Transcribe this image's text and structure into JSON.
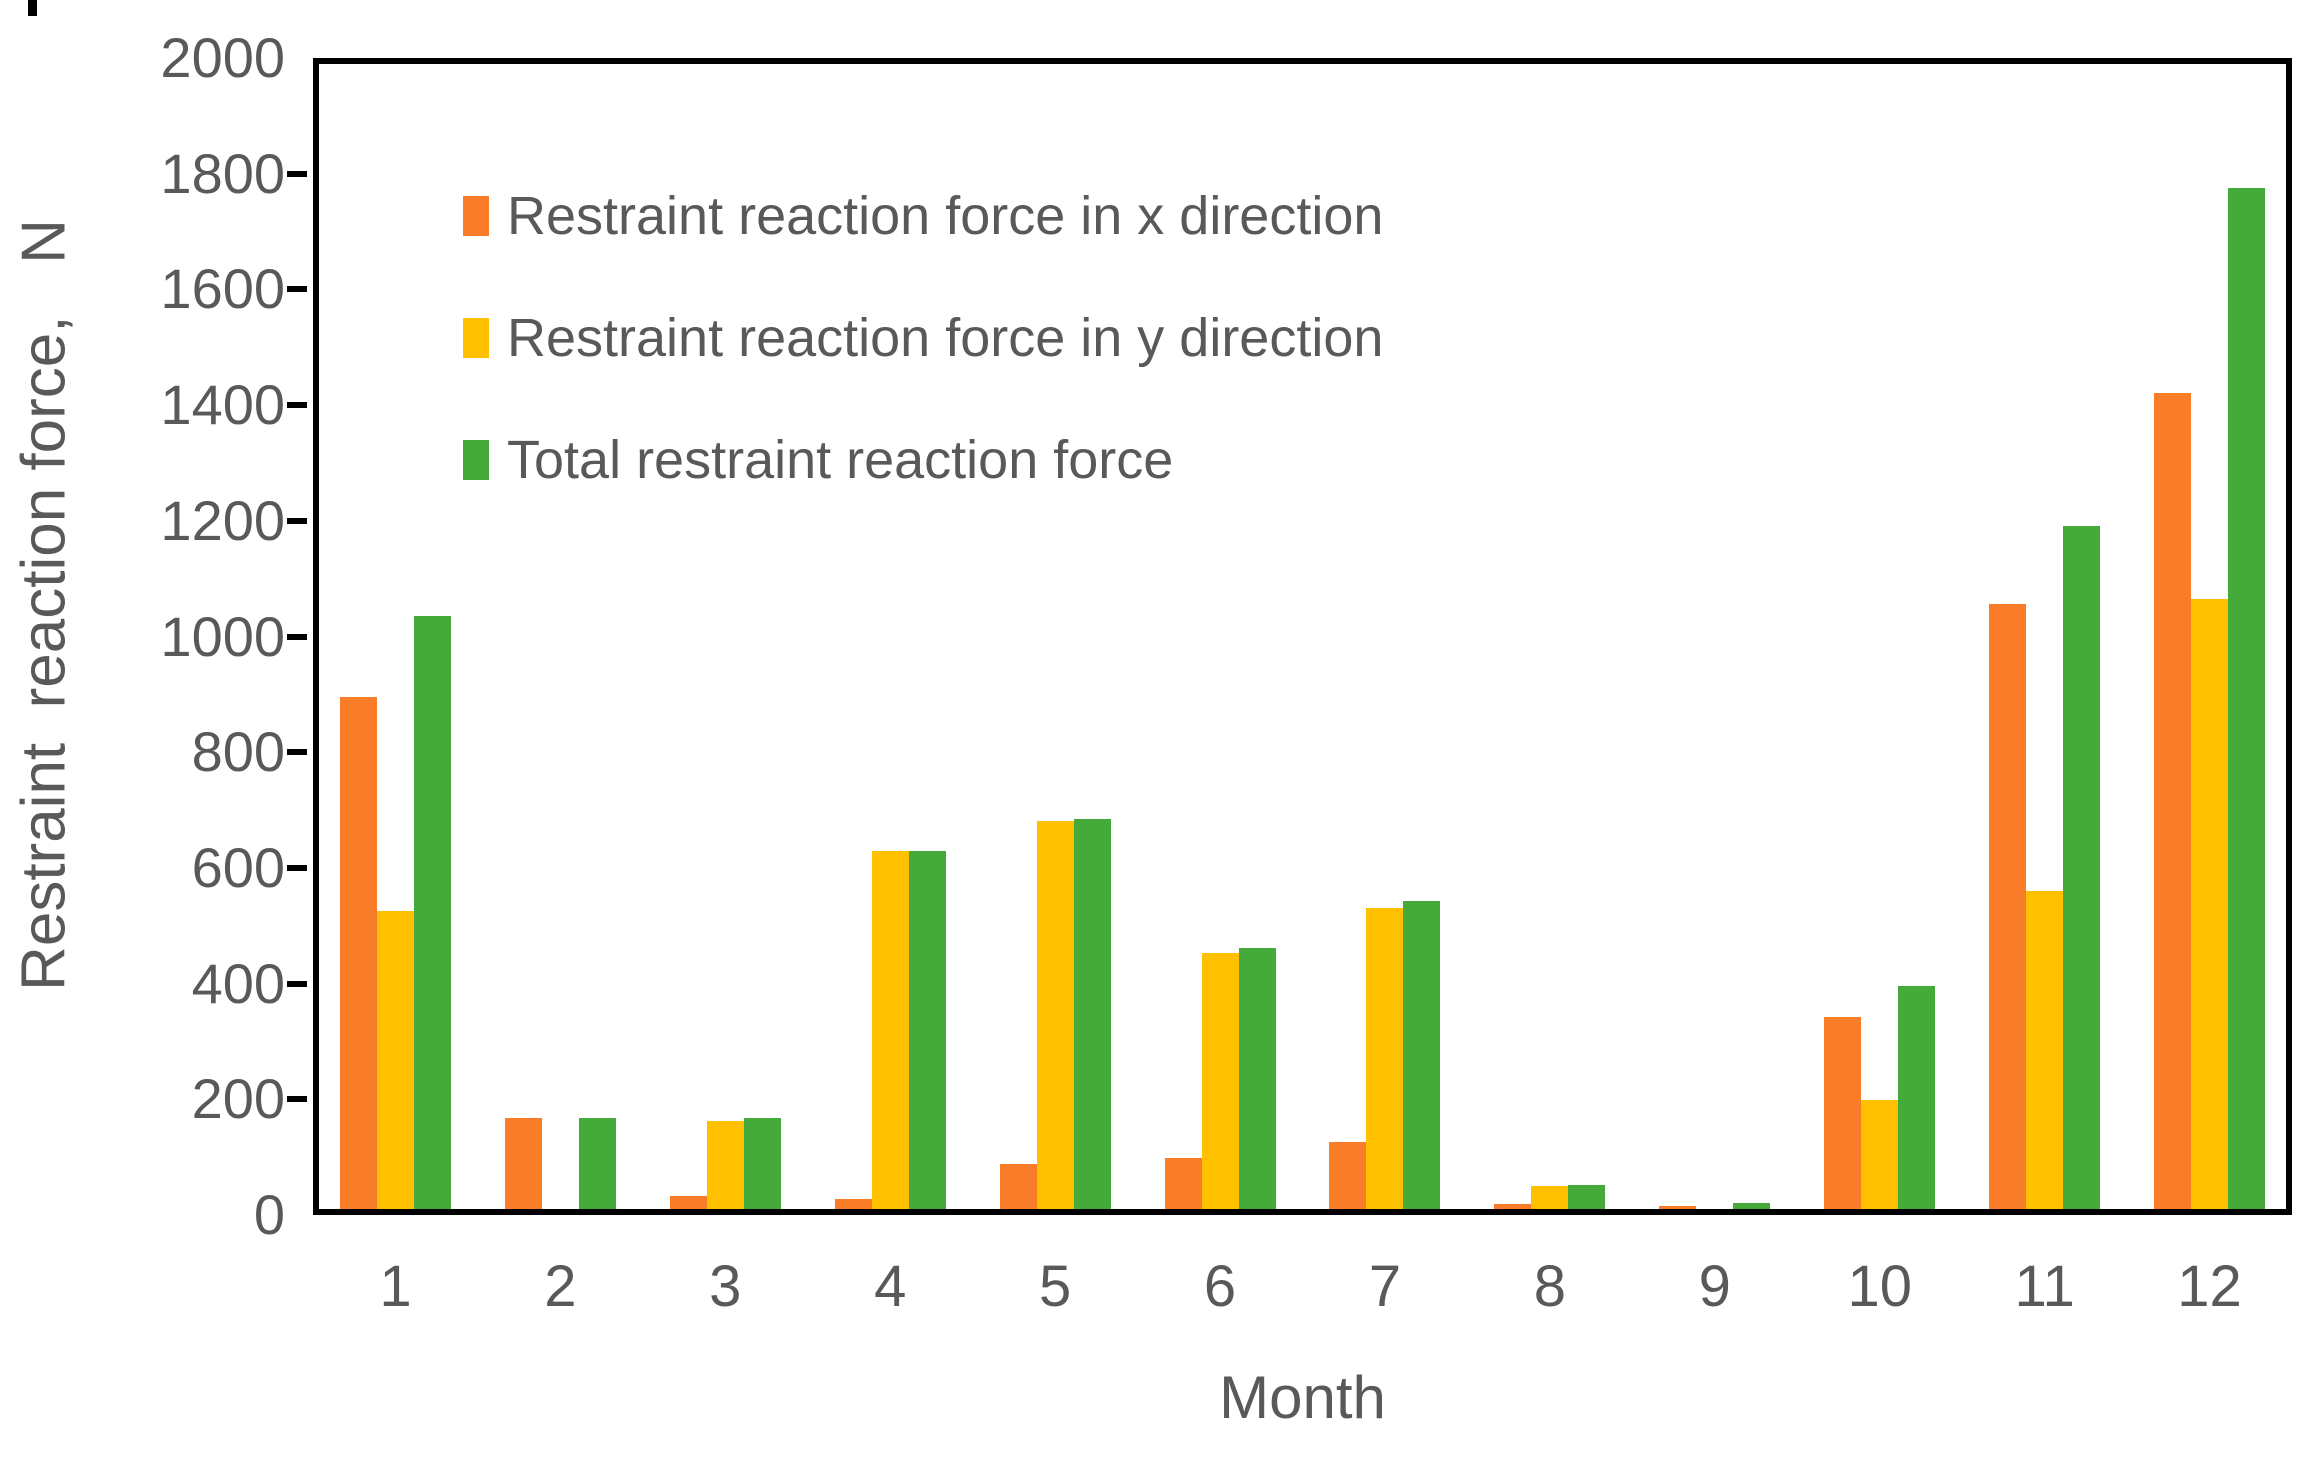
{
  "chart_data": {
    "type": "bar",
    "title": "",
    "xlabel": "Month",
    "ylabel": "Restraint  reaction force,   N",
    "categories": [
      "1",
      "2",
      "3",
      "4",
      "5",
      "6",
      "7",
      "8",
      "9",
      "10",
      "11",
      "12"
    ],
    "series": [
      {
        "name": "Restraint reaction force in x direction",
        "color": "#F97D28",
        "values": [
          885,
          158,
          22,
          18,
          78,
          88,
          115,
          8,
          6,
          332,
          1045,
          1410
        ]
      },
      {
        "name": "Restraint reaction force in y direction",
        "color": "#FFC000",
        "values": [
          515,
          0,
          152,
          618,
          670,
          442,
          520,
          40,
          0,
          188,
          550,
          1055
        ]
      },
      {
        "name": "Total restraint reaction force",
        "color": "#44AB3B",
        "values": [
          1025,
          158,
          157,
          619,
          675,
          452,
          533,
          42,
          10,
          385,
          1180,
          1765
        ]
      }
    ],
    "ylim": [
      0,
      2000
    ],
    "yticks": [
      0,
      200,
      400,
      600,
      800,
      1000,
      1200,
      1400,
      1600,
      1800,
      2000
    ],
    "ytick_step": 200,
    "grid": false,
    "legend_position": "inside-top-left",
    "axis_color": "#000000",
    "label_color": "#595959",
    "plot_background": "#ffffff"
  }
}
